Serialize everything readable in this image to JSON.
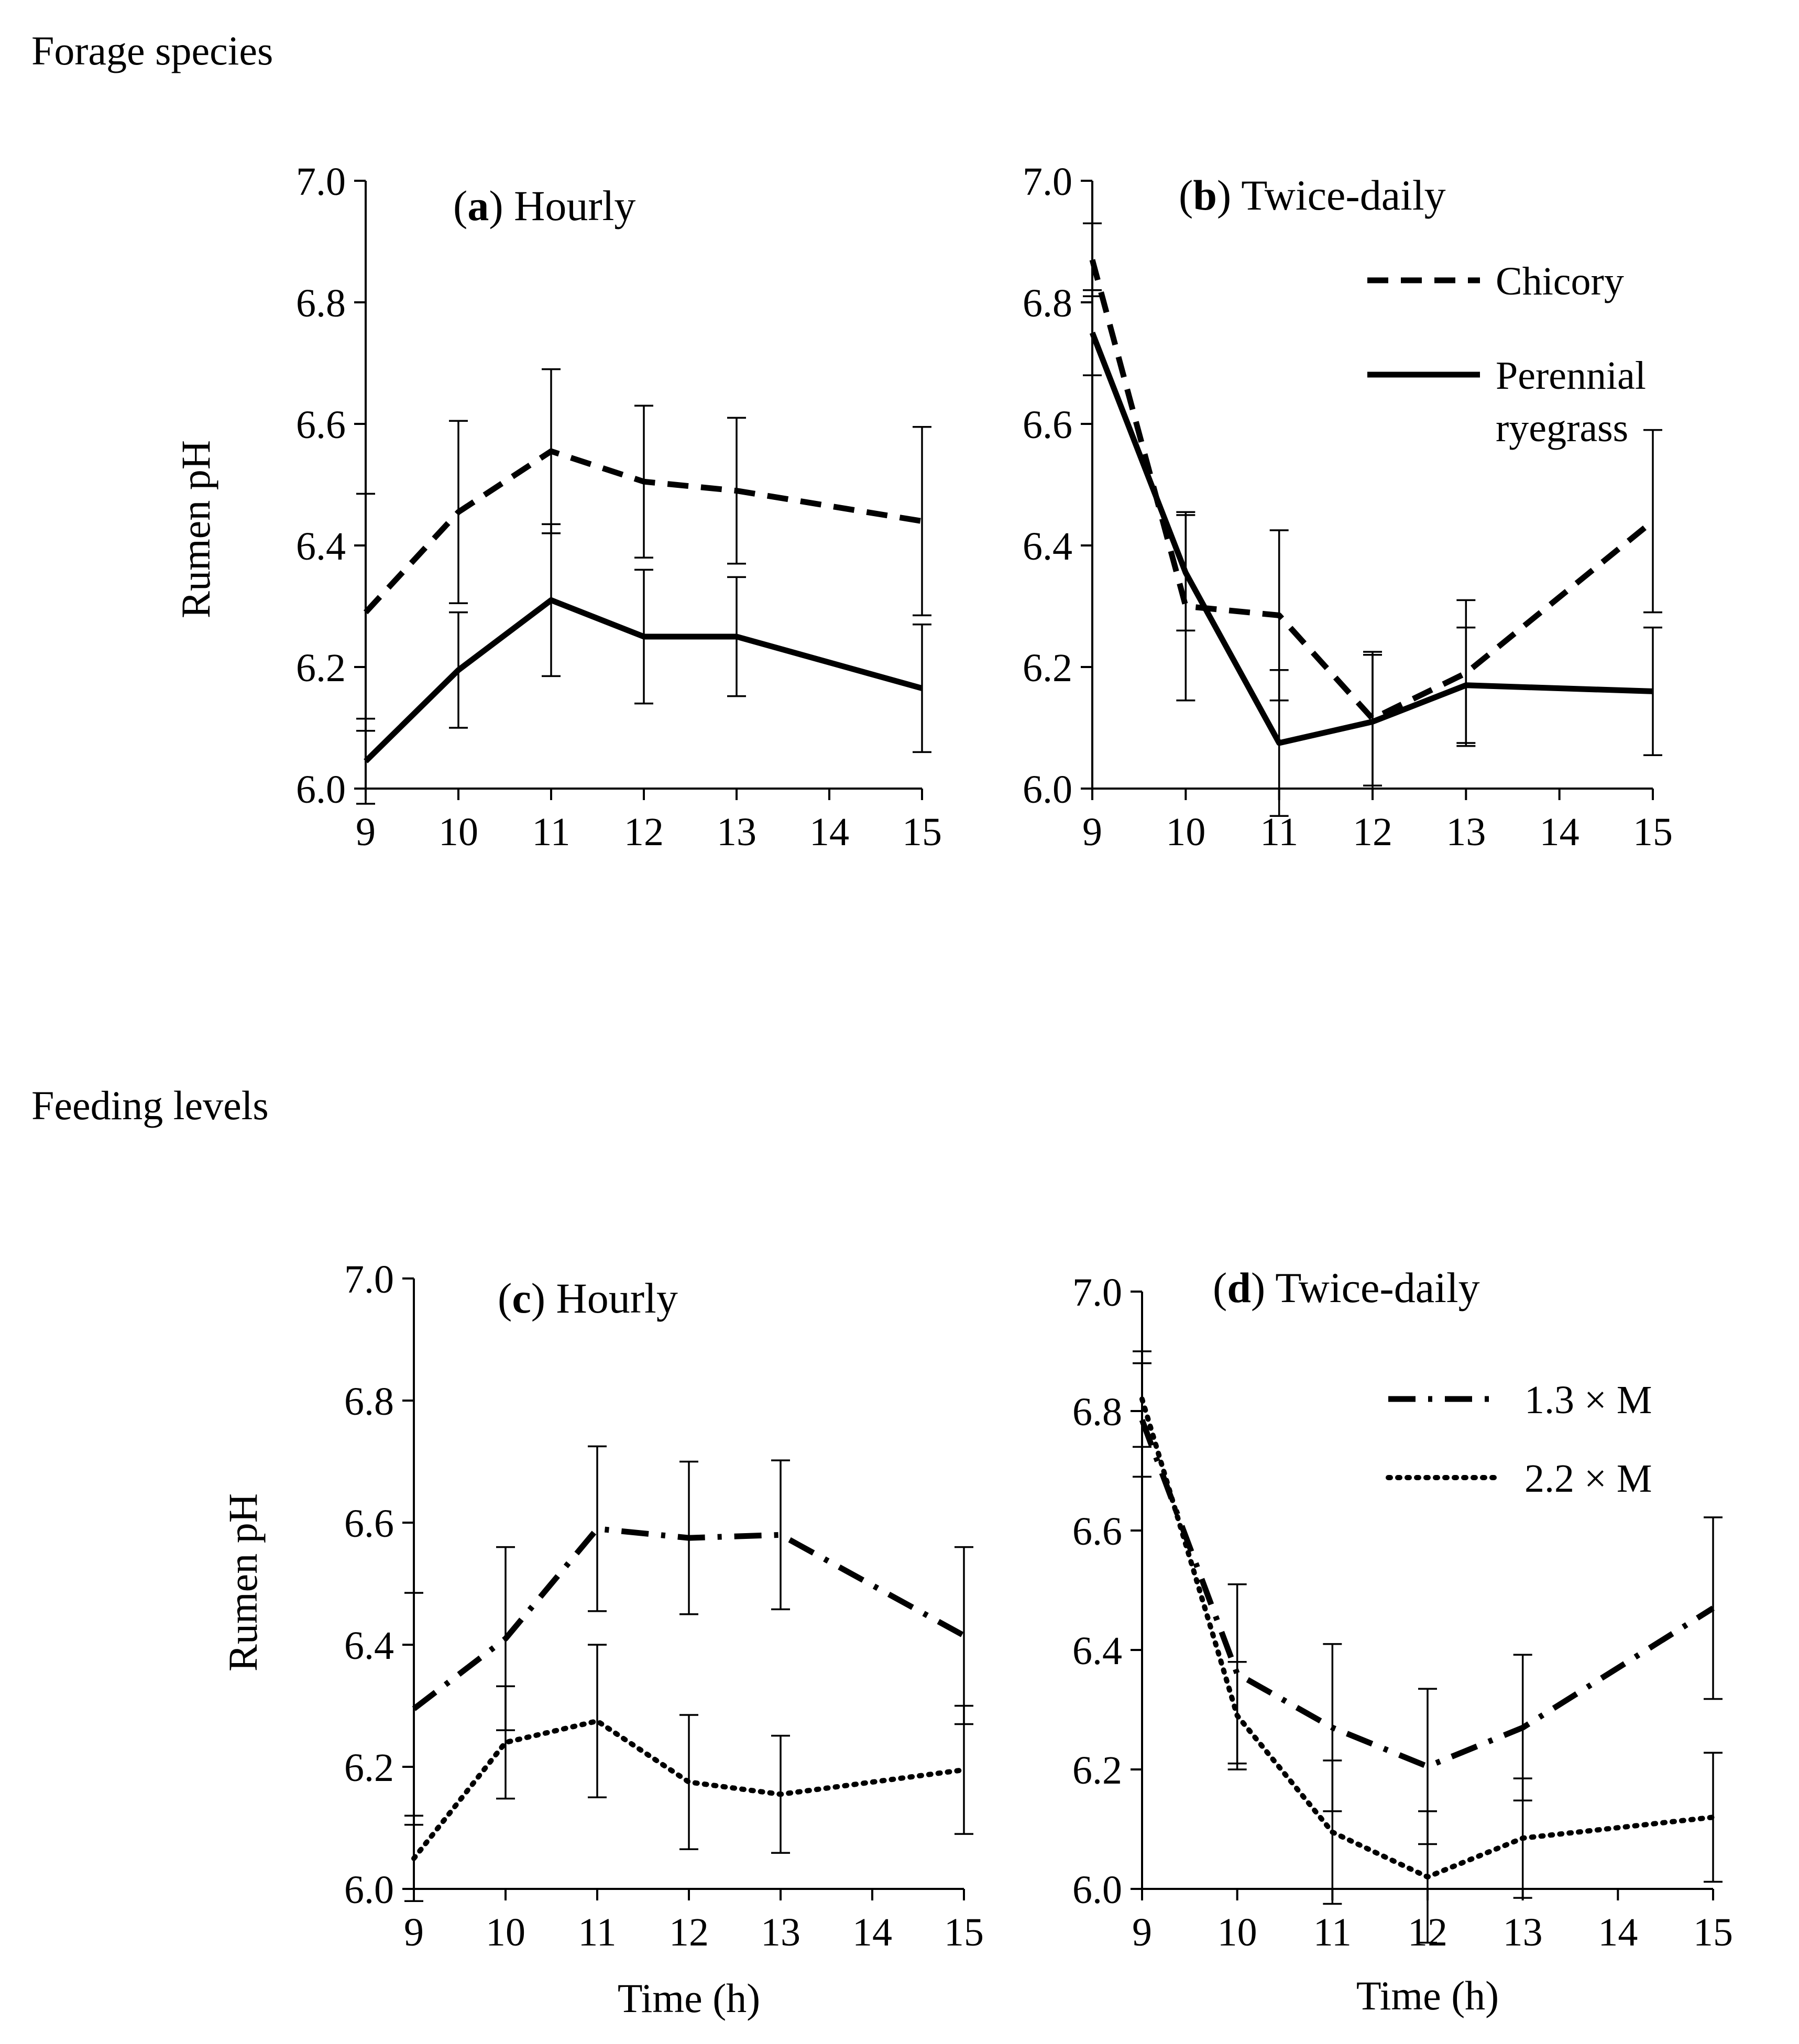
{
  "sections": {
    "forage": {
      "title": "Forage species"
    },
    "feeding": {
      "title": "Feeding levels"
    }
  },
  "colors": {
    "line": "#000000",
    "background": "#ffffff"
  },
  "chart_data": [
    {
      "id": "a",
      "type": "line",
      "panel_letter": "a",
      "panel_title": " Hourly",
      "ylabel": "Rumen pH",
      "xlabel": "",
      "xlim": [
        9,
        15
      ],
      "ylim": [
        6.0,
        7.0
      ],
      "xticks": [
        9,
        10,
        11,
        12,
        13,
        14,
        15
      ],
      "yticks": [
        "6.0",
        "6.2",
        "6.4",
        "6.6",
        "6.8",
        "7.0"
      ],
      "show_legend": false,
      "series": [
        {
          "name": "Chicory",
          "style": "dashed",
          "x": [
            9,
            10,
            11,
            12,
            13,
            15
          ],
          "y": [
            6.29,
            6.455,
            6.555,
            6.505,
            6.49,
            6.44
          ],
          "err": [
            0.195,
            0.15,
            0.135,
            0.125,
            0.12,
            0.155
          ]
        },
        {
          "name": "Perennial ryegrass",
          "style": "solid",
          "x": [
            9,
            10,
            11,
            12,
            13,
            15
          ],
          "y": [
            6.045,
            6.195,
            6.31,
            6.25,
            6.25,
            6.165
          ],
          "err": [
            0.07,
            0.095,
            0.125,
            0.11,
            0.098,
            0.105
          ]
        }
      ]
    },
    {
      "id": "b",
      "type": "line",
      "panel_letter": "b",
      "panel_title": " Twice-daily",
      "ylabel": "",
      "xlabel": "",
      "xlim": [
        9,
        15
      ],
      "ylim": [
        6.0,
        7.0
      ],
      "xticks": [
        9,
        10,
        11,
        12,
        13,
        14,
        15
      ],
      "yticks": [
        "6.0",
        "6.2",
        "6.4",
        "6.6",
        "6.8",
        "7.0"
      ],
      "show_legend": true,
      "legend": [
        {
          "label": "Chicory",
          "style": "dashed"
        },
        {
          "label": "Perennial ryegrass",
          "label_lines": [
            "Perennial",
            "ryegrass"
          ],
          "style": "solid"
        }
      ],
      "series": [
        {
          "name": "Chicory",
          "style": "dashed",
          "x": [
            9,
            10,
            11,
            12,
            13,
            15
          ],
          "y": [
            6.87,
            6.3,
            6.285,
            6.115,
            6.19,
            6.44
          ],
          "err": [
            0.06,
            0.155,
            0.14,
            0.11,
            0.12,
            0.15
          ]
        },
        {
          "name": "Perennial ryegrass",
          "style": "solid",
          "x": [
            9,
            10,
            11,
            12,
            13,
            15
          ],
          "y": [
            6.75,
            6.355,
            6.075,
            6.11,
            6.17,
            6.16
          ],
          "err": [
            0.07,
            0.095,
            0.12,
            0.11,
            0.095,
            0.105
          ]
        }
      ]
    },
    {
      "id": "c",
      "type": "line",
      "panel_letter": "c",
      "panel_title": " Hourly",
      "ylabel": "Rumen pH",
      "xlabel": "Time (h)",
      "xlim": [
        9,
        15
      ],
      "ylim": [
        6.0,
        7.0
      ],
      "xticks": [
        9,
        10,
        11,
        12,
        13,
        14,
        15
      ],
      "yticks": [
        "6.0",
        "6.2",
        "6.4",
        "6.6",
        "6.8",
        "7.0"
      ],
      "show_legend": false,
      "series": [
        {
          "name": "1.3 × M",
          "style": "dashdot",
          "x": [
            9,
            10,
            11,
            12,
            13,
            15
          ],
          "y": [
            6.295,
            6.41,
            6.59,
            6.575,
            6.58,
            6.415
          ],
          "err": [
            0.19,
            0.15,
            0.135,
            0.125,
            0.122,
            0.145
          ]
        },
        {
          "name": "2.2 × M",
          "style": "dotted",
          "x": [
            9,
            10,
            11,
            12,
            13,
            15
          ],
          "y": [
            6.05,
            6.24,
            6.275,
            6.175,
            6.155,
            6.195
          ],
          "err": [
            0.07,
            0.092,
            0.125,
            0.11,
            0.096,
            0.105
          ]
        }
      ]
    },
    {
      "id": "d",
      "type": "line",
      "panel_letter": "d",
      "panel_title": " Twice-daily",
      "ylabel": "",
      "xlabel": "Time (h)",
      "xlim": [
        9,
        15
      ],
      "ylim": [
        6.0,
        7.0
      ],
      "xticks": [
        9,
        10,
        11,
        12,
        13,
        14,
        15
      ],
      "yticks": [
        "6.0",
        "6.2",
        "6.4",
        "6.6",
        "6.8",
        "7.0"
      ],
      "show_legend": true,
      "legend": [
        {
          "label": "1.3 × M",
          "style": "dashdot"
        },
        {
          "label": "2.2 × M",
          "style": "dotted"
        }
      ],
      "series": [
        {
          "name": "1.3 × M",
          "style": "dashdot",
          "x": [
            9,
            10,
            11,
            12,
            13,
            15
          ],
          "y": [
            6.785,
            6.36,
            6.27,
            6.205,
            6.27,
            6.47
          ],
          "err": [
            0.095,
            0.15,
            0.14,
            0.13,
            0.122,
            0.152
          ]
        },
        {
          "name": "2.2 × M",
          "style": "dotted",
          "x": [
            9,
            10,
            11,
            12,
            13,
            15
          ],
          "y": [
            6.82,
            6.29,
            6.095,
            6.02,
            6.085,
            6.12
          ],
          "err": [
            0.08,
            0.09,
            0.12,
            0.11,
            0.1,
            0.108
          ]
        }
      ]
    }
  ]
}
